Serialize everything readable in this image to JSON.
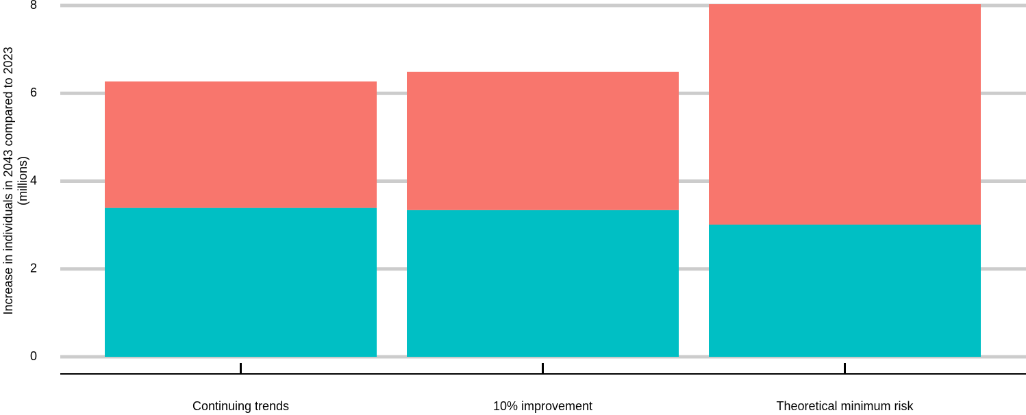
{
  "chart_data": {
    "type": "stacked_bar",
    "ylabel": [
      "Increase in individuals in 2043 compared to 2023",
      "(millions)"
    ],
    "categories": [
      "Continuing trends",
      "10% improvement",
      "Theoretical minimum risk"
    ],
    "series": [
      {
        "color": "#00bfc4",
        "values": [
          3.39,
          3.34,
          3.01
        ]
      },
      {
        "color": "#f8766d",
        "values": [
          2.88,
          3.15,
          5.02
        ]
      }
    ],
    "ylim": [
      0,
      8
    ],
    "yticks": [
      0,
      2,
      4,
      6,
      8
    ],
    "grid": true
  }
}
